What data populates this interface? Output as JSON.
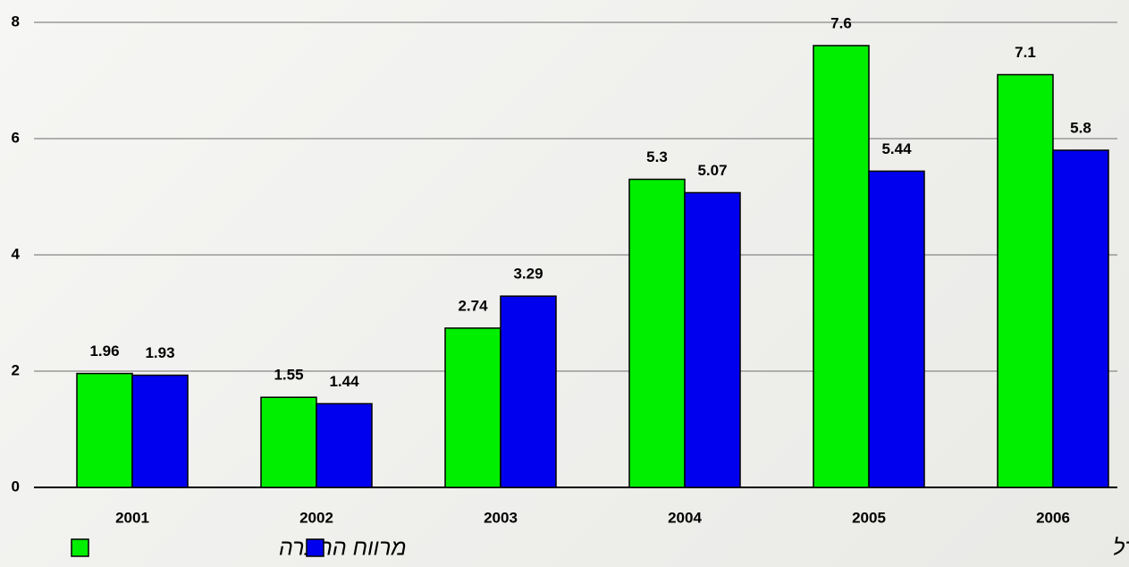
{
  "chart_data": {
    "type": "bar",
    "categories": [
      "2001",
      "2002",
      "2003",
      "2004",
      "2005",
      "2006"
    ],
    "series": [
      {
        "name": "מרווח החברה",
        "color": "#00ee00",
        "values": [
          1.96,
          1.55,
          2.74,
          5.3,
          7.6,
          7.1
        ]
      },
      {
        "name": "מרווח בתי זיקוק בים התיכון המפצחים נפט מסוג אורל",
        "color": "#0000ee",
        "values": [
          1.93,
          1.44,
          3.29,
          5.07,
          5.44,
          5.8
        ]
      }
    ],
    "ylim": [
      0,
      8
    ],
    "yticks": [
      0,
      2,
      4,
      6,
      8
    ],
    "grid": true,
    "legend": "bottom"
  }
}
